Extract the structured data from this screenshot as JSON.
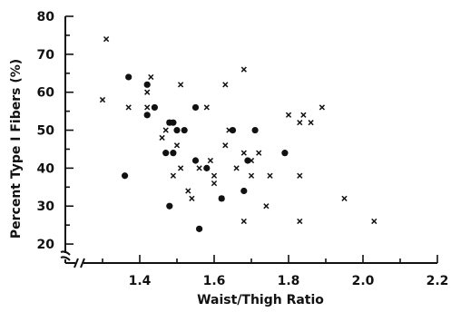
{
  "chart_data": {
    "type": "scatter",
    "title": "",
    "xlabel": "Waist/Thigh Ratio",
    "ylabel": "Percent Type I Fibers (%)",
    "xlim": [
      1.2,
      2.2
    ],
    "ylim": [
      15,
      80
    ],
    "xticks": [
      1.4,
      1.6,
      1.8,
      2.0,
      2.2
    ],
    "xtick_labels": [
      "1.4",
      "1.6",
      "1.8",
      "2.0",
      "2.2"
    ],
    "yticks": [
      20,
      30,
      40,
      50,
      60,
      70,
      80
    ],
    "ytick_labels": [
      "20",
      "30",
      "40",
      "50",
      "60",
      "70",
      "80"
    ],
    "axis_break": true,
    "grid": false,
    "series": [
      {
        "marker": "x",
        "points": [
          [
            1.31,
            74
          ],
          [
            1.3,
            58
          ],
          [
            1.37,
            56
          ],
          [
            1.42,
            60
          ],
          [
            1.42,
            56
          ],
          [
            1.43,
            64
          ],
          [
            1.46,
            48
          ],
          [
            1.47,
            50
          ],
          [
            1.48,
            52
          ],
          [
            1.49,
            38
          ],
          [
            1.5,
            46
          ],
          [
            1.51,
            62
          ],
          [
            1.51,
            40
          ],
          [
            1.53,
            34
          ],
          [
            1.54,
            32
          ],
          [
            1.56,
            40
          ],
          [
            1.58,
            56
          ],
          [
            1.59,
            42
          ],
          [
            1.6,
            38
          ],
          [
            1.6,
            36
          ],
          [
            1.62,
            32
          ],
          [
            1.63,
            62
          ],
          [
            1.63,
            46
          ],
          [
            1.64,
            50
          ],
          [
            1.66,
            40
          ],
          [
            1.68,
            66
          ],
          [
            1.68,
            44
          ],
          [
            1.68,
            26
          ],
          [
            1.7,
            38
          ],
          [
            1.7,
            42
          ],
          [
            1.72,
            44
          ],
          [
            1.74,
            30
          ],
          [
            1.75,
            38
          ],
          [
            1.8,
            54
          ],
          [
            1.83,
            52
          ],
          [
            1.83,
            38
          ],
          [
            1.83,
            26
          ],
          [
            1.84,
            54
          ],
          [
            1.86,
            52
          ],
          [
            1.89,
            56
          ],
          [
            1.95,
            32
          ],
          [
            2.03,
            26
          ]
        ]
      },
      {
        "marker": "dot",
        "points": [
          [
            1.36,
            38
          ],
          [
            1.37,
            64
          ],
          [
            1.42,
            62
          ],
          [
            1.42,
            54
          ],
          [
            1.44,
            56
          ],
          [
            1.47,
            44
          ],
          [
            1.48,
            30
          ],
          [
            1.48,
            52
          ],
          [
            1.49,
            52
          ],
          [
            1.49,
            44
          ],
          [
            1.5,
            50
          ],
          [
            1.52,
            50
          ],
          [
            1.55,
            56
          ],
          [
            1.55,
            42
          ],
          [
            1.56,
            24
          ],
          [
            1.58,
            40
          ],
          [
            1.62,
            32
          ],
          [
            1.65,
            50
          ],
          [
            1.68,
            34
          ],
          [
            1.69,
            42
          ],
          [
            1.71,
            50
          ],
          [
            1.79,
            44
          ]
        ]
      }
    ]
  }
}
